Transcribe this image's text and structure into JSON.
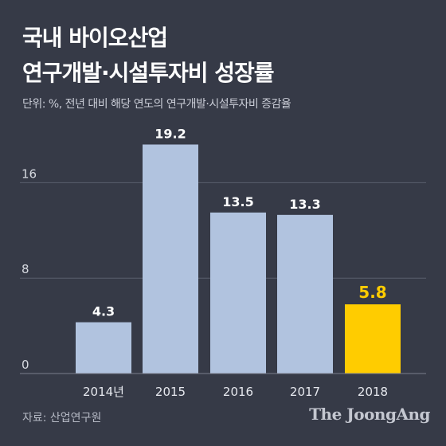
{
  "title_lines": [
    "국내 바이오산업",
    "연구개발·시설투자비 성장률"
  ],
  "subtitle": "단위: %, 전년 대비 해당 연도의 연구개발·시설투자비 증감율",
  "source": "자료: 산업연구원",
  "brand": "The JoongAng",
  "colors": {
    "background": "#363a47",
    "bar": "#b1c3df",
    "highlight_bar": "#ffcc00",
    "highlight_label": "#ffcc00",
    "grid": "#5a5f6e",
    "text": "#ffffff"
  },
  "chart_data": {
    "type": "bar",
    "categories": [
      "2014년",
      "2015",
      "2016",
      "2017",
      "2018"
    ],
    "values": [
      4.3,
      19.2,
      13.5,
      13.3,
      5.8
    ],
    "data_labels": [
      "4.3",
      "19.2",
      "13.5",
      "13.3",
      "5.8"
    ],
    "highlight_index": 4,
    "yticks": [
      0,
      8,
      16
    ],
    "ylim": [
      0,
      20.5
    ],
    "grid": true,
    "legend": "none"
  }
}
